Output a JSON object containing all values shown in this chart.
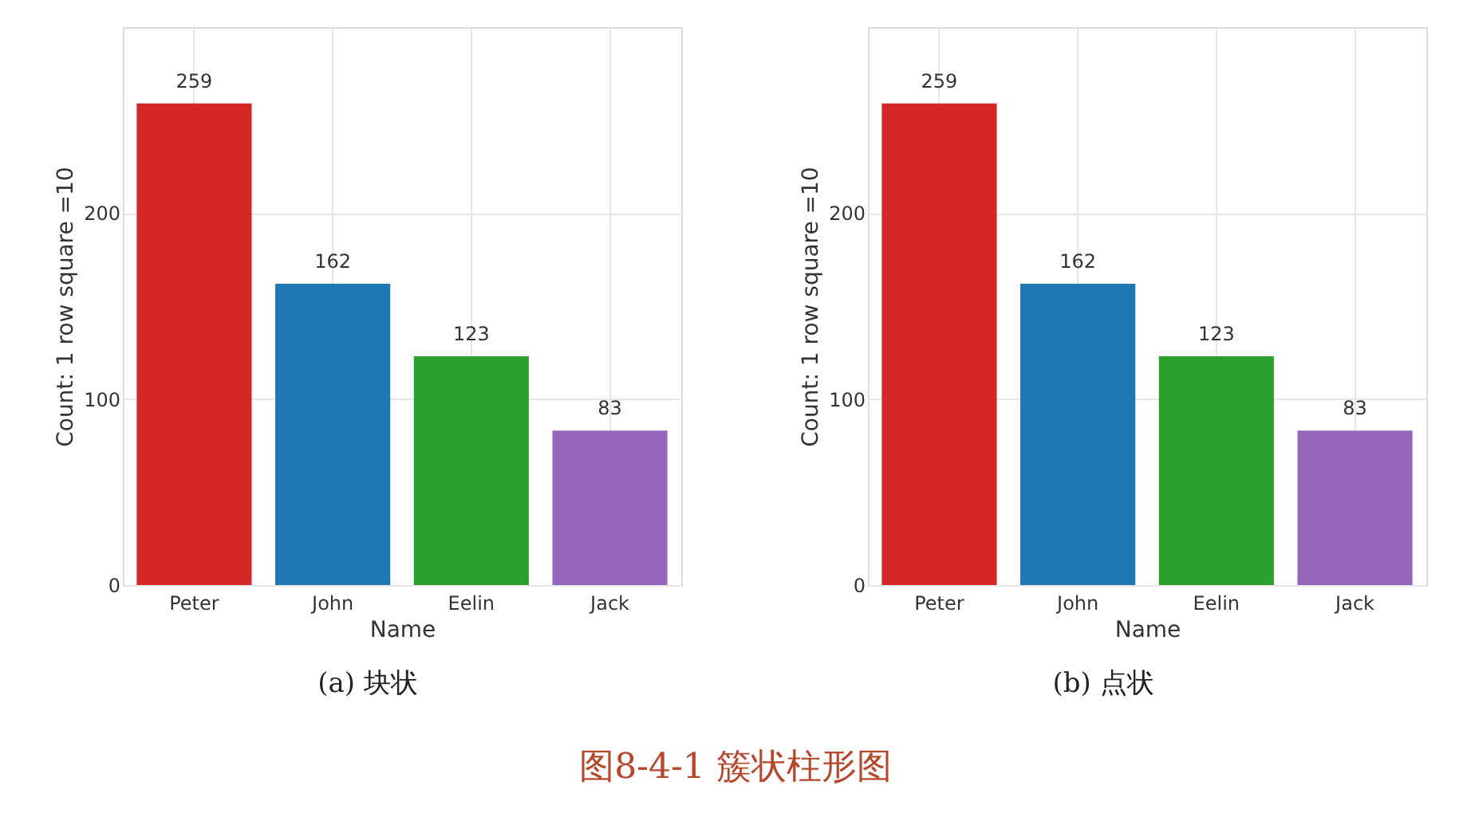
{
  "chart_data": [
    {
      "type": "bar",
      "categories": [
        "Peter",
        "John",
        "Eelin",
        "Jack"
      ],
      "values": [
        259,
        162,
        123,
        83
      ],
      "colors": [
        "#d62728",
        "#1f77b4",
        "#2ca02c",
        "#9467bd"
      ],
      "xlabel": "Name",
      "ylabel": "Count: 1 row square =10",
      "ylim": [
        0,
        300
      ],
      "yticks": [
        0,
        100,
        200
      ],
      "grid": true,
      "data_labels": true,
      "annotations": [
        "(a) 块状",
        "图8-4-1 簇状柱形图"
      ]
    },
    {
      "type": "bar",
      "categories": [
        "Peter",
        "John",
        "Eelin",
        "Jack"
      ],
      "values": [
        259,
        162,
        123,
        83
      ],
      "colors": [
        "#d62728",
        "#1f77b4",
        "#2ca02c",
        "#9467bd"
      ],
      "xlabel": "Name",
      "ylabel": "Count: 1 row square =10",
      "ylim": [
        0,
        300
      ],
      "yticks": [
        0,
        100,
        200
      ],
      "grid": true,
      "data_labels": true,
      "annotations": [
        "(b) 点状"
      ]
    }
  ]
}
